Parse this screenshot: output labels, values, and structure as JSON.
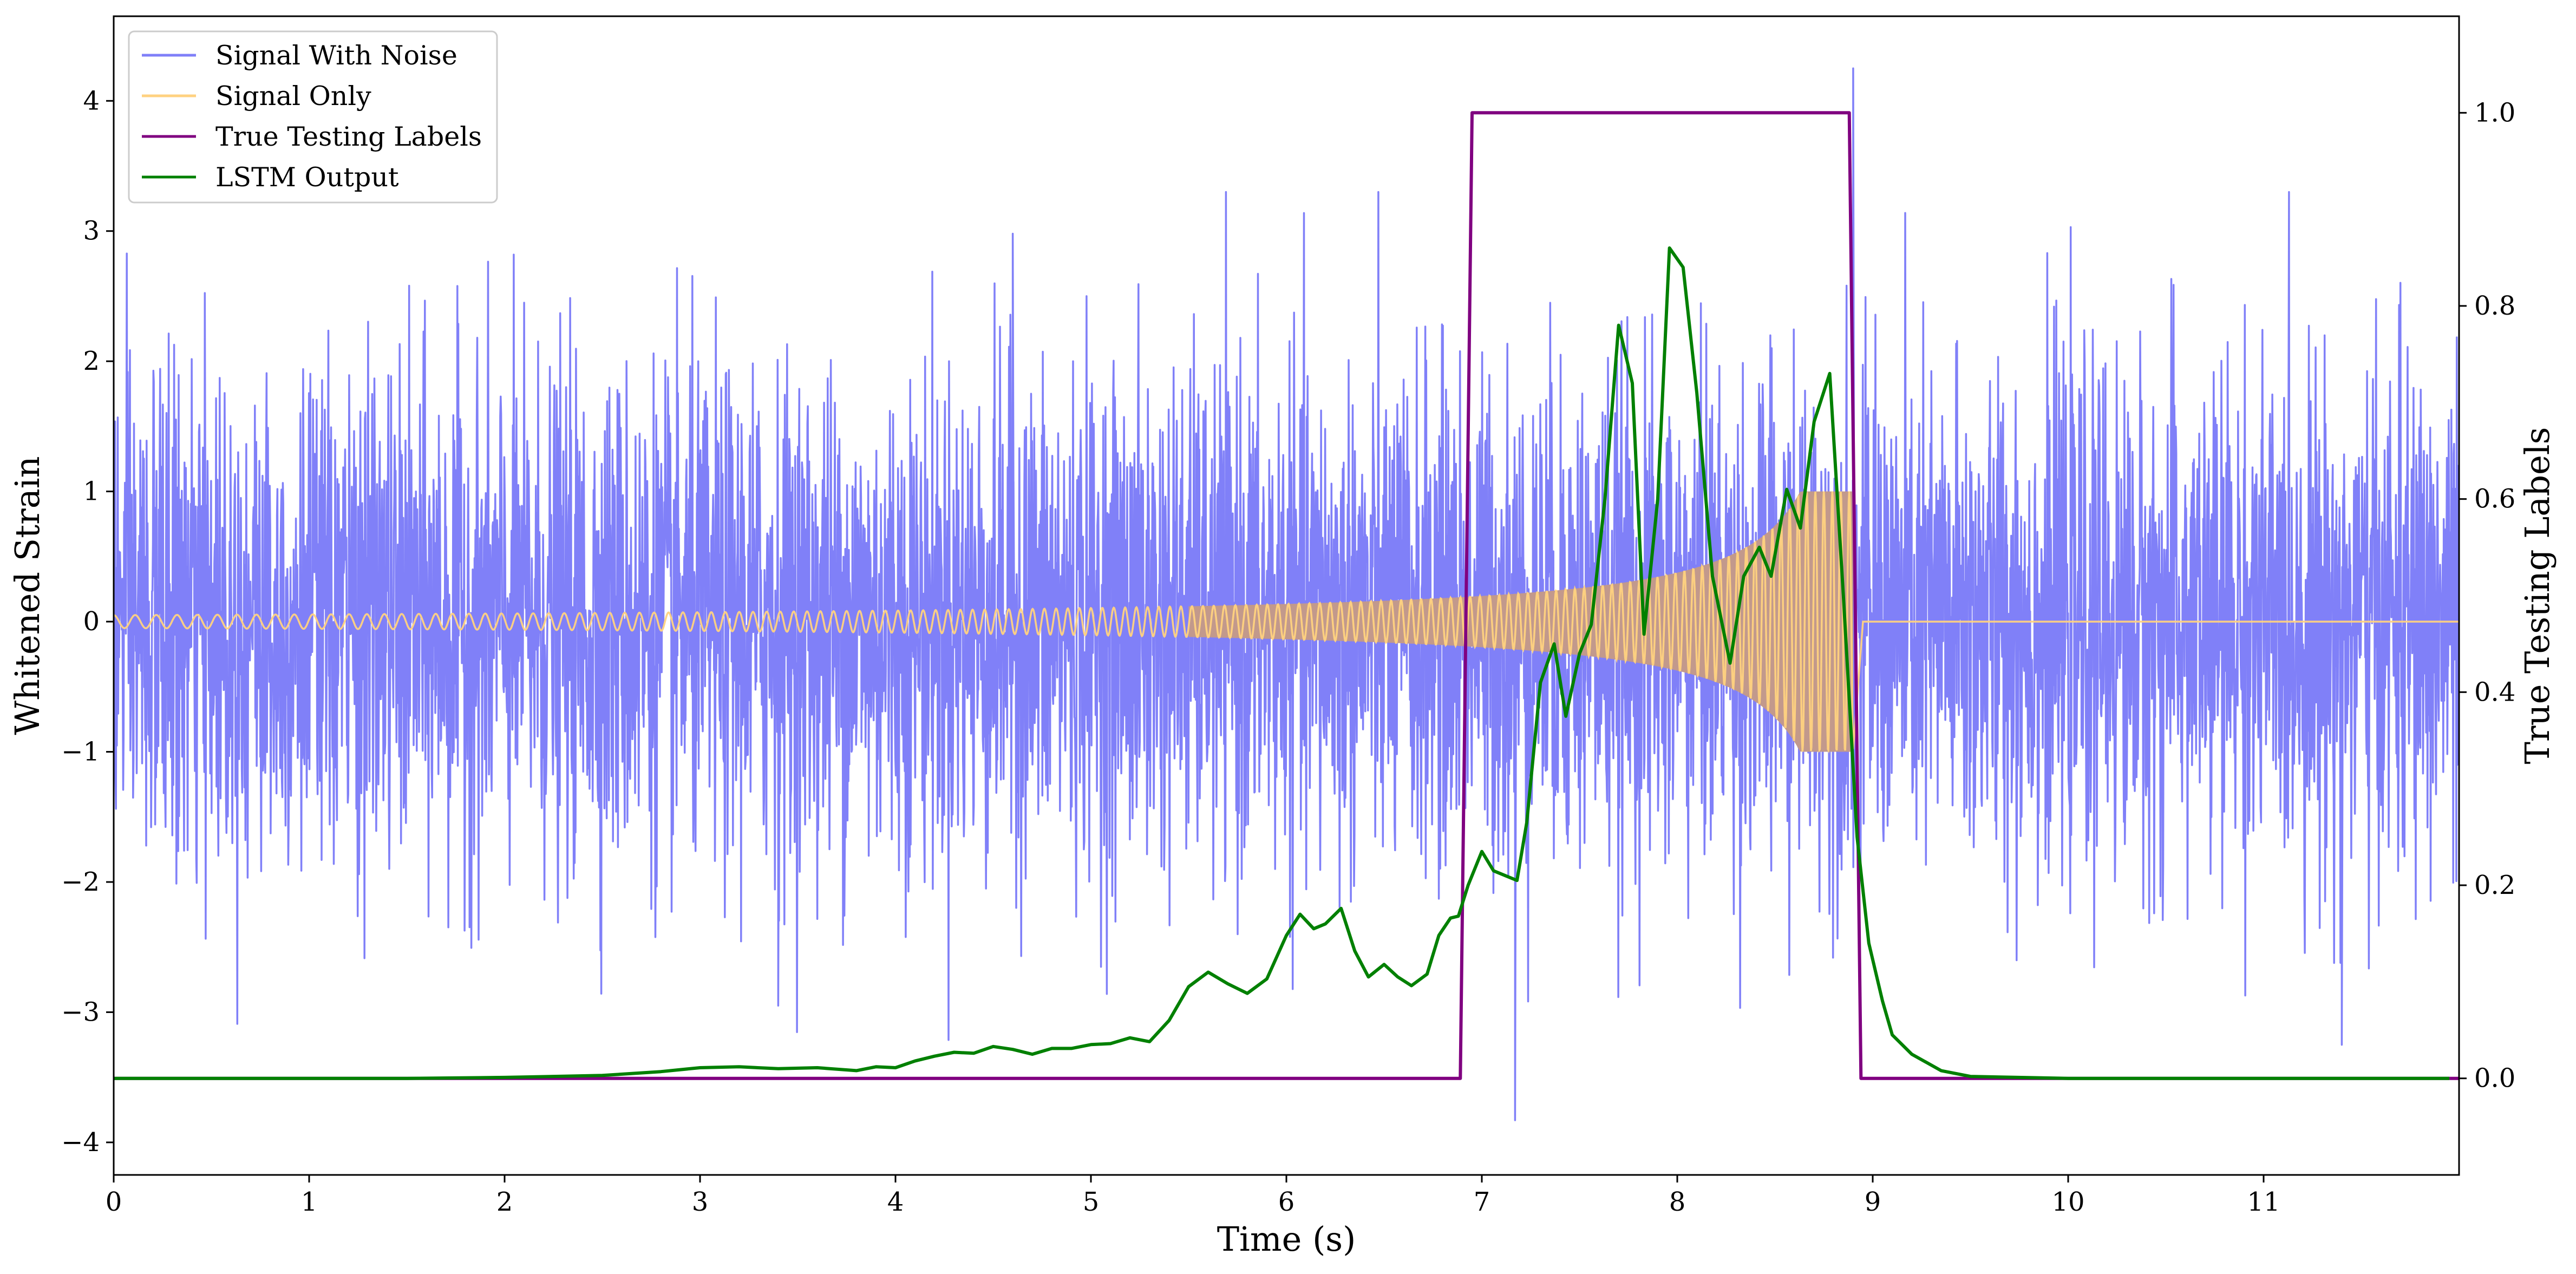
{
  "chart_data": {
    "type": "line",
    "xlabel": "Time (s)",
    "ylabel": "Whitened Strain",
    "y2label": "True Testing Labels",
    "xlim": [
      0,
      12
    ],
    "ylim": [
      -4.25,
      4.65
    ],
    "y2lim": [
      -0.1,
      1.1
    ],
    "xticks": [
      0,
      1,
      2,
      3,
      4,
      5,
      6,
      7,
      8,
      9,
      10,
      11
    ],
    "yticks": [
      -4,
      -3,
      -2,
      -1,
      0,
      1,
      2,
      3,
      4
    ],
    "y2ticks": [
      0.0,
      0.2,
      0.4,
      0.6,
      0.8,
      1.0
    ],
    "xtick_labels": [
      "0",
      "1",
      "2",
      "3",
      "4",
      "5",
      "6",
      "7",
      "8",
      "9",
      "10",
      "11"
    ],
    "ytick_labels": [
      "−4",
      "−3",
      "−2",
      "−1",
      "0",
      "1",
      "2",
      "3",
      "4"
    ],
    "y2tick_labels": [
      "0.0",
      "0.2",
      "0.4",
      "0.6",
      "0.8",
      "1.0"
    ],
    "legend_position": "upper-left",
    "grid": false,
    "series": [
      {
        "name": "Signal With Noise",
        "color": "#8080f8",
        "axis": "left",
        "kind": "noise",
        "std": 0.95,
        "spike_extremes": [
          {
            "x": 8.9,
            "y": 4.25
          },
          {
            "x": 7.17,
            "y": -3.83
          },
          {
            "x": 4.6,
            "y": 2.98
          },
          {
            "x": 3.4,
            "y": -2.95
          },
          {
            "x": 11.4,
            "y": -3.25
          }
        ]
      },
      {
        "name": "Signal Only",
        "color": "#ffd280",
        "axis": "left",
        "kind": "chirp",
        "start": 0,
        "end": 8.9,
        "amplitude_start": 0.05,
        "amplitude_peak": 1.0
      },
      {
        "name": "True Testing Labels",
        "color": "#800080",
        "axis": "right",
        "x": [
          0,
          6.89,
          6.95,
          8.88,
          8.94,
          12
        ],
        "y": [
          0,
          0,
          1,
          1,
          0,
          0
        ]
      },
      {
        "name": "LSTM Output",
        "color": "#008000",
        "axis": "right",
        "x": [
          0,
          1.5,
          2.0,
          2.5,
          2.8,
          3.0,
          3.2,
          3.4,
          3.6,
          3.8,
          3.9,
          4.0,
          4.1,
          4.2,
          4.3,
          4.4,
          4.5,
          4.6,
          4.7,
          4.8,
          4.9,
          5.0,
          5.1,
          5.2,
          5.3,
          5.4,
          5.5,
          5.6,
          5.7,
          5.8,
          5.9,
          6.0,
          6.07,
          6.14,
          6.2,
          6.28,
          6.35,
          6.42,
          6.5,
          6.57,
          6.64,
          6.72,
          6.78,
          6.84,
          6.88,
          6.93,
          7.0,
          7.06,
          7.12,
          7.18,
          7.23,
          7.3,
          7.37,
          7.43,
          7.5,
          7.56,
          7.63,
          7.7,
          7.77,
          7.83,
          7.9,
          7.96,
          8.03,
          8.1,
          8.18,
          8.27,
          8.34,
          8.42,
          8.48,
          8.56,
          8.63,
          8.7,
          8.78,
          8.85,
          8.92,
          8.98,
          9.05,
          9.1,
          9.2,
          9.35,
          9.5,
          10.0,
          11.0,
          11.95
        ],
        "y": [
          0,
          0,
          0.001,
          0.003,
          0.007,
          0.011,
          0.012,
          0.01,
          0.011,
          0.008,
          0.012,
          0.011,
          0.018,
          0.023,
          0.027,
          0.026,
          0.033,
          0.03,
          0.025,
          0.031,
          0.031,
          0.035,
          0.036,
          0.042,
          0.038,
          0.06,
          0.095,
          0.11,
          0.098,
          0.088,
          0.103,
          0.148,
          0.17,
          0.155,
          0.16,
          0.176,
          0.132,
          0.105,
          0.118,
          0.105,
          0.096,
          0.108,
          0.148,
          0.166,
          0.168,
          0.2,
          0.235,
          0.215,
          0.21,
          0.205,
          0.265,
          0.41,
          0.45,
          0.375,
          0.44,
          0.47,
          0.6,
          0.78,
          0.72,
          0.46,
          0.6,
          0.86,
          0.84,
          0.71,
          0.52,
          0.43,
          0.52,
          0.55,
          0.52,
          0.61,
          0.57,
          0.68,
          0.73,
          0.5,
          0.25,
          0.14,
          0.08,
          0.045,
          0.025,
          0.008,
          0.002,
          0.0,
          0.0,
          0.0
        ]
      }
    ]
  },
  "legend": {
    "items": [
      {
        "label": "Signal With Noise",
        "color": "#8080f8"
      },
      {
        "label": "Signal Only",
        "color": "#ffd280"
      },
      {
        "label": "True Testing Labels",
        "color": "#800080"
      },
      {
        "label": "LSTM Output",
        "color": "#008000"
      }
    ]
  }
}
